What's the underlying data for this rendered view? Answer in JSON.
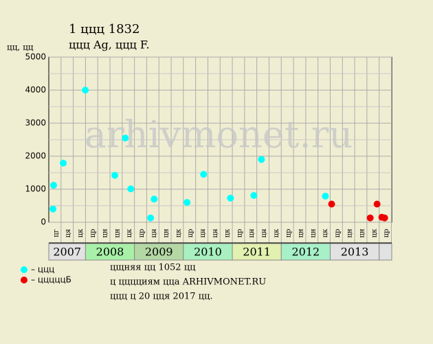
{
  "chart_data": {
    "type": "scatter",
    "title": "1 ццц 1832",
    "subtitle": "ццц Ag, ццц F.",
    "y_label": "цц, цц",
    "watermark": "arhivmonet.ru",
    "xlim": [
      0,
      28
    ],
    "ylim": [
      0,
      5000
    ],
    "yticks": [
      0,
      1000,
      2000,
      3000,
      4000,
      5000
    ],
    "grid": true,
    "columns": [
      "цг",
      "ця",
      "цк",
      "цр",
      "цн",
      "цн",
      "цк",
      "цр",
      "цн",
      "цн",
      "цк",
      "цр",
      "цн",
      "цн",
      "цк",
      "цр",
      "цн",
      "цн",
      "цк",
      "цр",
      "цн",
      "цн",
      "цк",
      "цр",
      "цн",
      "цн",
      "цк",
      "цр"
    ],
    "years": [
      {
        "label": "2007",
        "color": "#e2e2e2"
      },
      {
        "label": "2008",
        "color": "#a8f0a8"
      },
      {
        "label": "2009",
        "color": "#b4d8a4"
      },
      {
        "label": "2010",
        "color": "#a8f0c0"
      },
      {
        "label": "2011",
        "color": "#e2f0b0"
      },
      {
        "label": "2012",
        "color": "#a8f0c8"
      },
      {
        "label": "2013",
        "color": "#e2e2e2"
      }
    ],
    "series": [
      {
        "name": "– ццц",
        "color": "#00ffff",
        "x": [
          0.34,
          0.39,
          1.18,
          2.98,
          5.39,
          6.24,
          6.69,
          8.31,
          8.6,
          11.29,
          12.64,
          14.83,
          16.74,
          17.36,
          22.58
        ],
        "values": [
          400,
          1120,
          1790,
          4000,
          1420,
          2550,
          1010,
          130,
          700,
          600,
          1450,
          730,
          810,
          1900,
          790
        ]
      },
      {
        "name": "– цццццБ",
        "color": "#ee0000",
        "x": [
          23.09,
          26.24,
          26.8,
          27.19,
          27.42
        ],
        "values": [
          550,
          130,
          550,
          150,
          130
        ]
      }
    ],
    "notes": [
      "цщняя цц 1052 цц",
      "ц цццциям цца ARHIVMONET.RU",
      "ццц ц 20 цця 2017 цц."
    ]
  }
}
